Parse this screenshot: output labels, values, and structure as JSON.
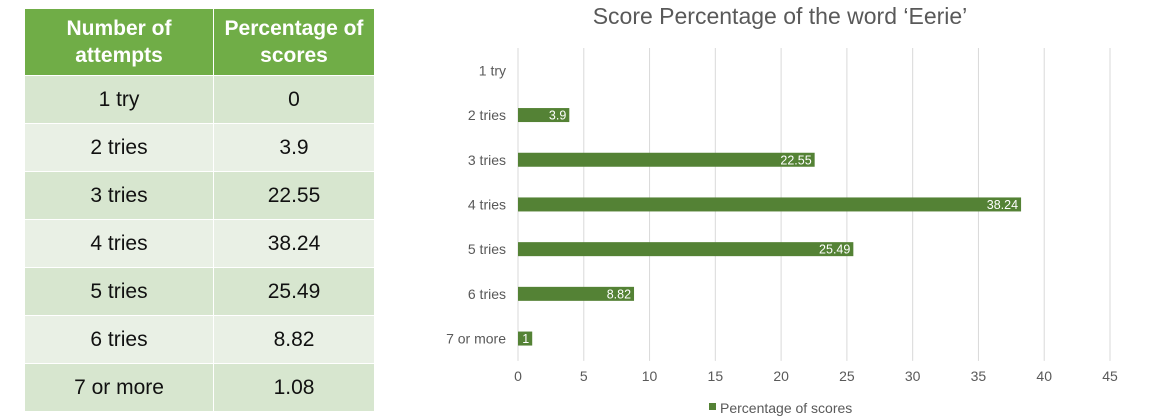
{
  "table": {
    "headers": [
      "Number of attempts",
      "Percentage of scores"
    ],
    "rows": [
      [
        "1 try",
        "0"
      ],
      [
        "2 tries",
        "3.9"
      ],
      [
        "3 tries",
        "22.55"
      ],
      [
        "4 tries",
        "38.24"
      ],
      [
        "5 tries",
        "25.49"
      ],
      [
        "6 tries",
        "8.82"
      ],
      [
        "7 or more",
        "1.08"
      ]
    ]
  },
  "chart_data": {
    "type": "bar",
    "orientation": "horizontal",
    "title": "Score Percentage of the word ‘Eerie’",
    "categories": [
      "1 try",
      "2 tries",
      "3 tries",
      "4 tries",
      "5 tries",
      "6 tries",
      "7 or more"
    ],
    "series": [
      {
        "name": "Percentage of scores",
        "values": [
          0,
          3.9,
          22.55,
          38.24,
          25.49,
          8.82,
          1.08
        ],
        "labels": [
          "",
          "3.9",
          "22.55",
          "38.24",
          "25.49",
          "8.82",
          "1"
        ],
        "color": "#548235"
      }
    ],
    "xlim": [
      0,
      45
    ],
    "xticks": [
      0,
      5,
      10,
      15,
      20,
      25,
      30,
      35,
      40,
      45
    ],
    "grid": "vertical",
    "legend": "bottom",
    "xlabel": "",
    "ylabel": ""
  }
}
